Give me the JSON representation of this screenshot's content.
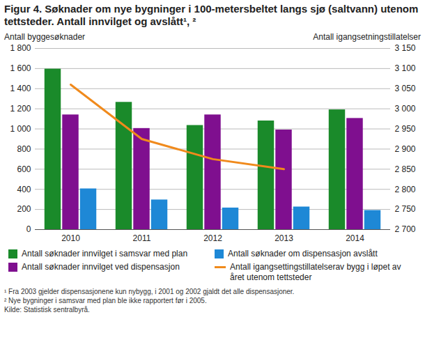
{
  "chart_data": {
    "type": "bar",
    "title": "Figur 4. Søknader om nye bygninger i 100-metersbeltet langs sjø (saltvann) utenom tettsteder. Antall innvilget og avslått¹, ²",
    "ylabel": "Antall byggesøknader",
    "y2label": "Antall igangsetningstillatelser",
    "categories": [
      "2010",
      "2011",
      "2012",
      "2013",
      "2014"
    ],
    "series": [
      {
        "name": "Antall søknader innvilget i samsvar med plan",
        "color": "#1a8a2a",
        "values": [
          1595,
          1265,
          1035,
          1080,
          1190
        ]
      },
      {
        "name": "Antall søknader innvilget ved dispensasjon",
        "color": "#7f0f8f",
        "values": [
          1140,
          1005,
          1140,
          990,
          1105
        ]
      },
      {
        "name": "Antall søknader om dispensasjon avslått",
        "color": "#1e88d6",
        "values": [
          405,
          295,
          215,
          225,
          190
        ]
      },
      {
        "name": "Antall igangsettingstillatelserav bygg i løpet av året utenom tettsteder",
        "color": "#f08a1c",
        "type": "line",
        "axis": "y2",
        "values": [
          3060,
          2925,
          2875,
          2850,
          null
        ]
      }
    ],
    "ylim": [
      0,
      1800
    ],
    "yticks": [
      0,
      200,
      400,
      600,
      800,
      {
        "value": 1000,
        "label": "1 000"
      },
      {
        "value": 1200,
        "label": "1 200"
      },
      {
        "value": 1400,
        "label": "1 400"
      },
      {
        "value": 1600,
        "label": "1 600"
      },
      {
        "value": 1800,
        "label": "1 800"
      }
    ],
    "y2lim": [
      2700,
      3150
    ],
    "y2ticks": [
      {
        "value": 2700,
        "label": "2 700"
      },
      {
        "value": 2750,
        "label": "2 750"
      },
      {
        "value": 2800,
        "label": "2 800"
      },
      {
        "value": 2850,
        "label": "2 850"
      },
      {
        "value": 2900,
        "label": "2 900"
      },
      {
        "value": 2950,
        "label": "2 950"
      },
      {
        "value": 3000,
        "label": "3 000"
      },
      {
        "value": 3050,
        "label": "3 050"
      },
      {
        "value": 3100,
        "label": "3 100"
      },
      {
        "value": 3150,
        "label": "3 150"
      }
    ],
    "grid": true,
    "legend": "bottom",
    "notes": [
      "¹ Fra 2003 gjelder dispensasjonene kun nybygg, i 2001 og 2002 gjaldt det alle dispensasjoner.",
      "² Nye bygninger i samsvar med plan ble ikke rapportert før i 2005.",
      "Kilde: Statistisk sentralbyrå."
    ]
  }
}
